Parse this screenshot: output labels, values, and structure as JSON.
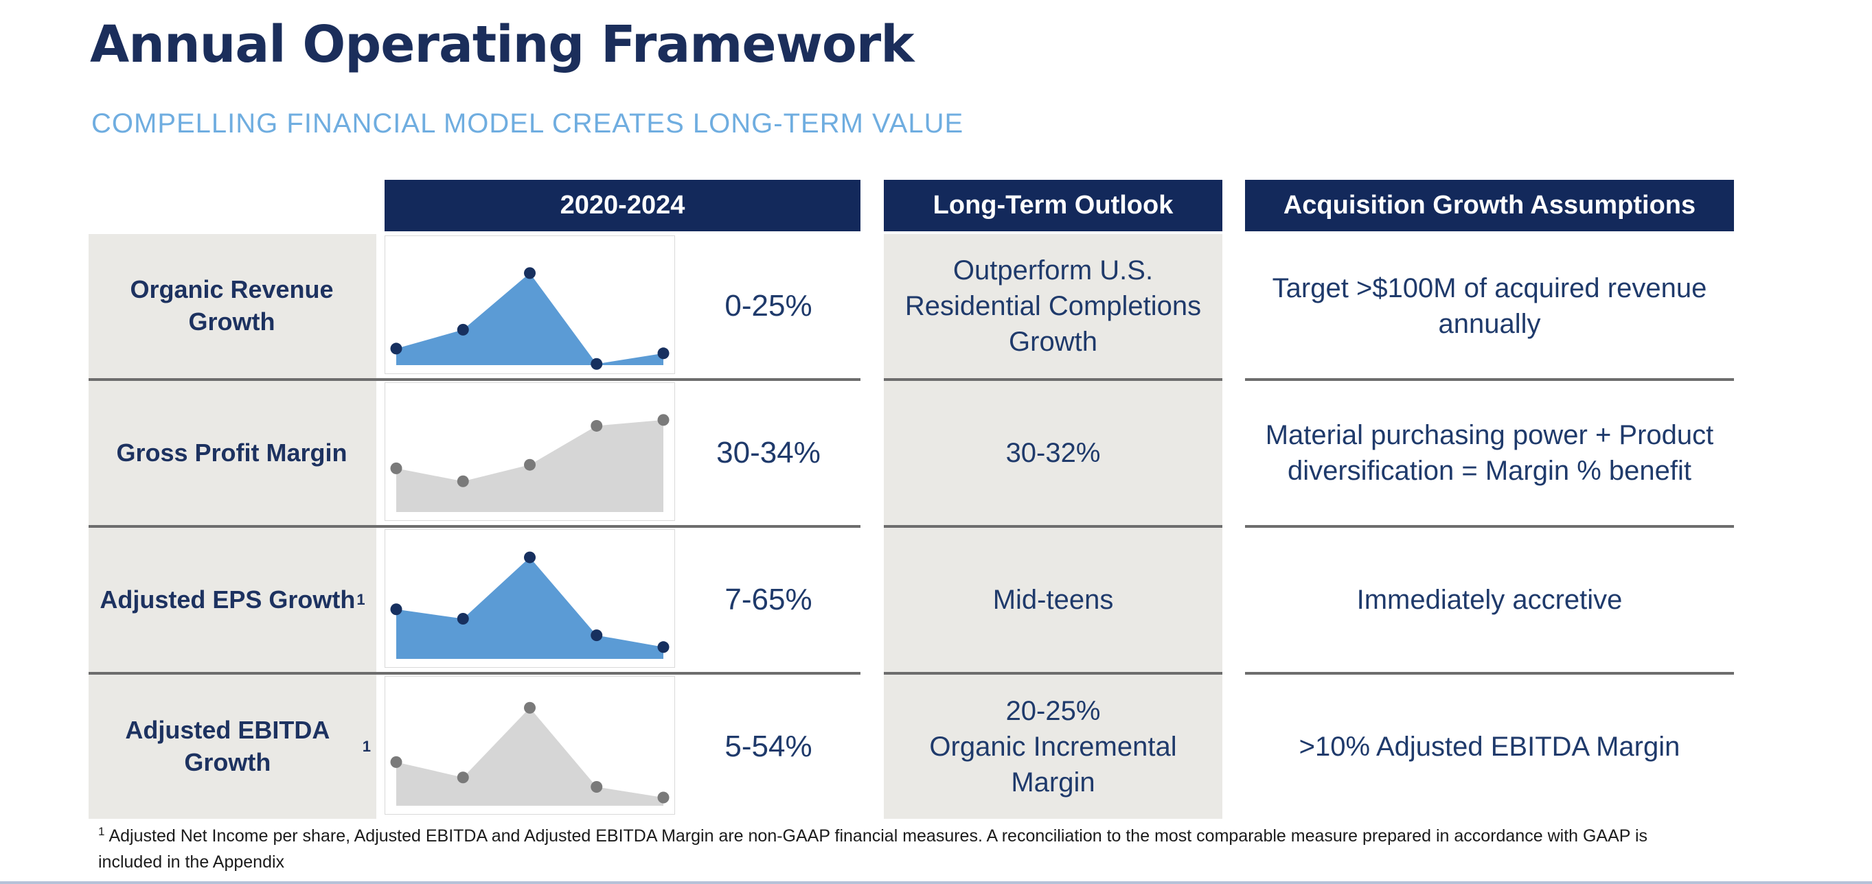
{
  "slide": {
    "title": "Annual Operating Framework",
    "subtitle": "COMPELLING FINANCIAL MODEL CREATES LONG-TERM VALUE",
    "footnote_marker": "1",
    "footnote": "Adjusted Net Income per share, Adjusted EBITDA and Adjusted EBITDA Margin are non-GAAP financial measures.  A reconciliation to the most comparable measure prepared in accordance with GAAP is included in the Appendix"
  },
  "table": {
    "headers": [
      {
        "label": "2020-2024"
      },
      {
        "label": "Long-Term Outlook"
      },
      {
        "label": "Acquisition Growth Assumptions"
      }
    ],
    "rows": [
      {
        "label": "Organic Revenue Growth",
        "sup": "",
        "range_2020_2024": "0-25%",
        "long_term_outlook": "Outperform U.S.\nResidential Completions\nGrowth",
        "acquisition_assumption": "Target >$100M of acquired revenue annually"
      },
      {
        "label": "Gross Profit Margin",
        "sup": "",
        "range_2020_2024": "30-34%",
        "long_term_outlook": "30-32%",
        "acquisition_assumption": "Material purchasing power + Product diversification =  Margin % benefit"
      },
      {
        "label": "Adjusted EPS Growth",
        "sup": "1",
        "range_2020_2024": "7-65%",
        "long_term_outlook": "Mid-teens",
        "acquisition_assumption": "Immediately accretive"
      },
      {
        "label": "Adjusted EBITDA Growth",
        "sup": "1",
        "range_2020_2024": "5-54%",
        "long_term_outlook": "20-25%\nOrganic Incremental\nMargin",
        "acquisition_assumption": ">10% Adjusted EBITDA Margin"
      }
    ]
  },
  "chart_data": [
    {
      "type": "area",
      "metric": "Organic Revenue Growth",
      "x_span": "2020-2024",
      "points": 5,
      "values_relative": [
        14,
        30,
        78,
        1,
        10
      ],
      "range_label": "0-25%",
      "fill": "#5B9BD5",
      "dot": "#17305F"
    },
    {
      "type": "area",
      "metric": "Gross Profit Margin",
      "x_span": "2020-2024",
      "points": 5,
      "values_relative": [
        37,
        26,
        40,
        73,
        78
      ],
      "range_label": "30-34%",
      "fill": "#D6D6D6",
      "dot": "#7A7A7A"
    },
    {
      "type": "area",
      "metric": "Adjusted EPS Growth",
      "x_span": "2020-2024",
      "points": 5,
      "values_relative": [
        42,
        34,
        86,
        20,
        10
      ],
      "range_label": "7-65%",
      "fill": "#5B9BD5",
      "dot": "#17305F"
    },
    {
      "type": "area",
      "metric": "Adjusted EBITDA Growth",
      "x_span": "2020-2024",
      "points": 5,
      "values_relative": [
        37,
        24,
        83,
        16,
        7
      ],
      "range_label": "5-54%",
      "fill": "#D6D6D6",
      "dot": "#7A7A7A"
    }
  ],
  "colors": {
    "header_bg": "#13295b",
    "title": "#1b2e5b",
    "subtitle": "#6fade0",
    "body_text": "#1f3a6b",
    "cell_gray": "#eae9e5",
    "divider": "#6d6d6d",
    "blue_fill": "#5B9BD5",
    "gray_fill": "#D6D6D6",
    "bottom_edge": "#b6c2d8"
  }
}
